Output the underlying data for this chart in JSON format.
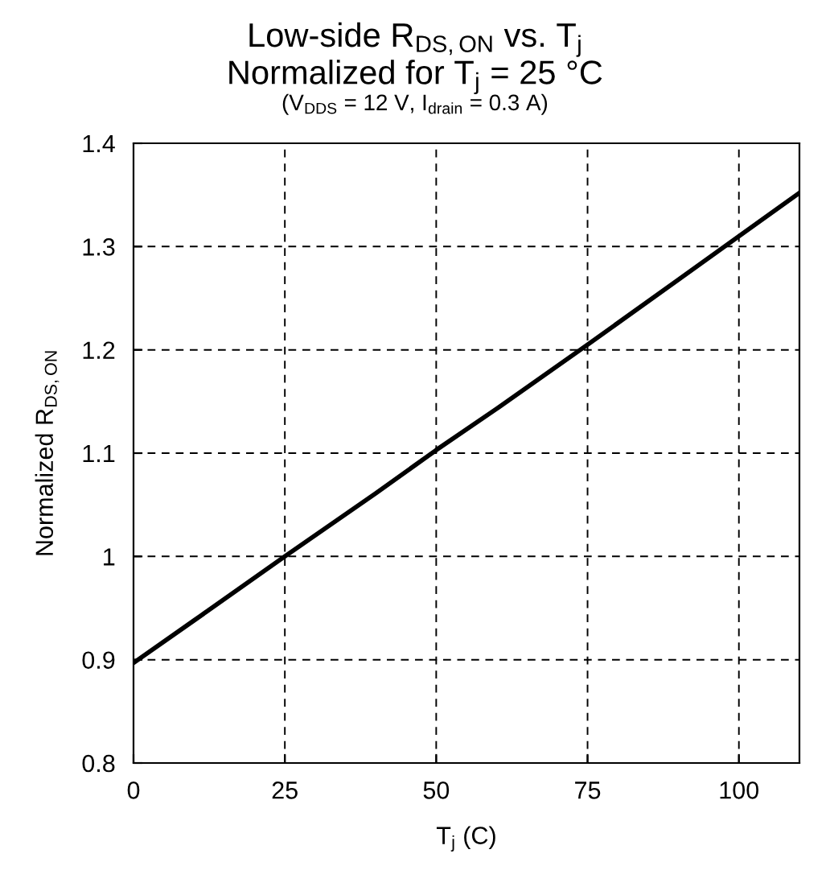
{
  "chart_data": {
    "type": "line",
    "title": "Low-side R$_{DS,ON}$ vs. T$_{j}$\nNormalized for T$_{j}$ = 25 °C",
    "subtitle": "(V$_{DDS}$ = 12 V, I$_{drain}$ = 0.3 A)",
    "xlabel": "T$_{j}$ (C)",
    "ylabel": "Normalized R$_{DS,ON}$",
    "x": [
      0,
      10,
      25,
      40,
      50,
      60,
      75,
      90,
      100,
      110
    ],
    "series": [
      {
        "color": "#000000",
        "values": [
          0.897,
          0.938,
          1.0,
          1.061,
          1.103,
          1.143,
          1.205,
          1.268,
          1.31,
          1.352
        ]
      }
    ],
    "xlim": [
      0,
      110
    ],
    "xticks": [
      0,
      25,
      50,
      75,
      100
    ],
    "ylim": [
      0.8,
      1.4
    ],
    "yticks": [
      0.8,
      0.9,
      1,
      1.1,
      1.2,
      1.3,
      1.4
    ],
    "grid": true,
    "line_style": "solid",
    "marker": "none",
    "legend": false
  }
}
